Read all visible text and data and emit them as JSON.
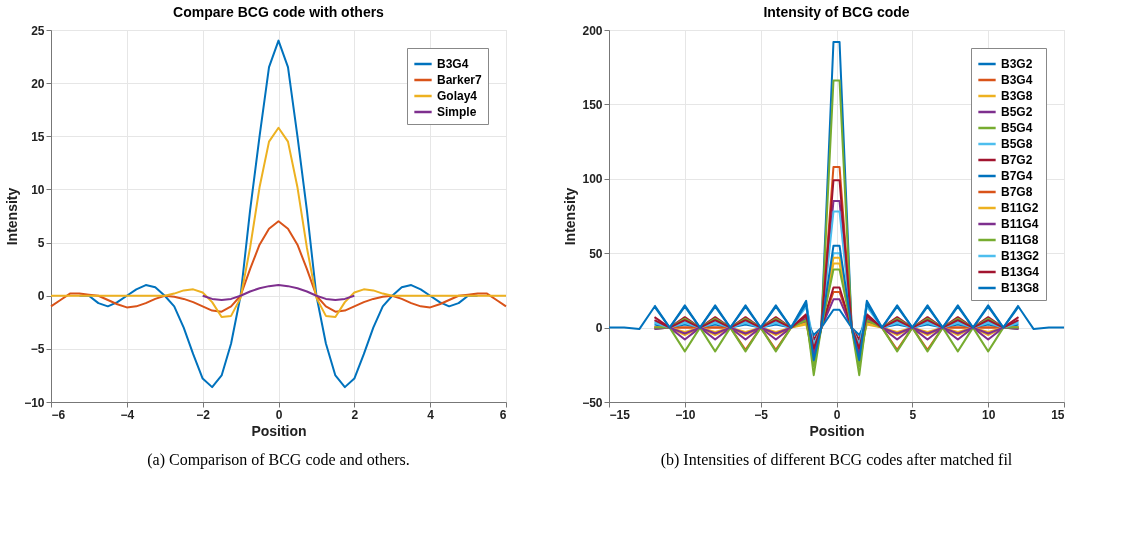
{
  "chart_data": [
    {
      "type": "line",
      "title": "Compare BCG code with others",
      "xlabel": "Position",
      "ylabel": "Intensity",
      "x": [
        -6,
        -5.75,
        -5.5,
        -5.25,
        -5,
        -4.75,
        -4.5,
        -4.25,
        -4,
        -3.75,
        -3.5,
        -3.25,
        -3,
        -2.75,
        -2.5,
        -2.25,
        -2,
        -1.75,
        -1.5,
        -1.25,
        -1,
        -0.75,
        -0.5,
        -0.25,
        0,
        0.25,
        0.5,
        0.75,
        1,
        1.25,
        1.5,
        1.75,
        2,
        2.25,
        2.5,
        2.75,
        3,
        3.25,
        3.5,
        3.75,
        4,
        4.25,
        4.5,
        4.75,
        5,
        5.25,
        5.5,
        5.75,
        6
      ],
      "series": [
        {
          "name": "B3G4",
          "color": "#0072bd",
          "values": [
            null,
            null,
            null,
            0,
            0,
            -0.7,
            -1.0,
            -0.6,
            0,
            0.6,
            1.0,
            0.8,
            0,
            -1,
            -3,
            -5.5,
            -7.8,
            -8.6,
            -7.5,
            -4.5,
            0,
            8,
            15,
            21.5,
            24,
            21.5,
            15,
            8,
            0,
            -4.5,
            -7.5,
            -8.6,
            -7.8,
            -5.5,
            -3,
            -1,
            0,
            0.8,
            1.0,
            0.6,
            0,
            -0.6,
            -1.0,
            -0.7,
            0,
            0,
            null,
            null,
            null
          ]
        },
        {
          "name": "Barker7",
          "color": "#d95319",
          "values": [
            -1.0,
            -0.4,
            0.2,
            0.2,
            0.1,
            0,
            -0.4,
            -0.8,
            -1.1,
            -1.0,
            -0.7,
            -0.3,
            0,
            -0.1,
            -0.3,
            -0.6,
            -1.0,
            -1.4,
            -1.5,
            -1.0,
            0,
            2.5,
            4.8,
            6.3,
            7,
            6.3,
            4.8,
            2.5,
            0,
            -1.0,
            -1.5,
            -1.4,
            -1.0,
            -0.6,
            -0.3,
            -0.1,
            0,
            -0.3,
            -0.7,
            -1.0,
            -1.1,
            -0.8,
            -0.4,
            0,
            0.1,
            0.2,
            0.2,
            -0.4,
            -1.0
          ]
        },
        {
          "name": "Golay4",
          "color": "#edb120",
          "values": [
            0,
            0,
            0,
            0,
            0,
            0,
            0,
            0,
            0,
            0,
            0,
            0,
            0,
            0.2,
            0.5,
            0.6,
            0.3,
            -0.6,
            -2.0,
            -1.9,
            -0.2,
            4.5,
            10.2,
            14.5,
            15.8,
            14.5,
            10.2,
            4.5,
            -0.2,
            -1.9,
            -2.0,
            -0.6,
            0.3,
            0.6,
            0.5,
            0.2,
            0,
            0,
            0,
            0,
            0,
            0,
            0,
            0,
            0,
            0,
            0,
            0,
            0
          ]
        },
        {
          "name": "Simple",
          "color": "#7e2f8e",
          "x": [
            -2,
            -1.75,
            -1.5,
            -1.25,
            -1,
            -0.75,
            -0.5,
            -0.25,
            0,
            0.25,
            0.5,
            0.75,
            1,
            1.25,
            1.5,
            1.75,
            2
          ],
          "values": [
            0,
            -0.3,
            -0.4,
            -0.3,
            0,
            0.4,
            0.7,
            0.9,
            1,
            0.9,
            0.7,
            0.4,
            0,
            -0.3,
            -0.4,
            -0.3,
            0
          ]
        }
      ],
      "xlim": [
        -6,
        6
      ],
      "xticks": [
        -6,
        -4,
        -2,
        0,
        2,
        4,
        6
      ],
      "ylim": [
        -10,
        25
      ],
      "yticks": [
        -10,
        -5,
        0,
        5,
        10,
        15,
        20,
        25
      ],
      "grid": true,
      "legend": "top right",
      "annotations": [
        "(a) Comparison of BCG code and others."
      ]
    },
    {
      "type": "line",
      "title": "Intensity of BCG code",
      "xlabel": "Position",
      "ylabel": "Intensity",
      "x": [
        -15,
        -14,
        -13,
        -12,
        -11,
        -10,
        -9,
        -8,
        -7,
        -6,
        -5,
        -4,
        -3,
        -2,
        -1.5,
        -1,
        -0.2,
        0,
        0.2,
        1,
        1.5,
        2,
        3,
        4,
        5,
        6,
        7,
        8,
        9,
        10,
        11,
        12,
        13,
        14,
        15
      ],
      "series": [
        {
          "name": "B3G2",
          "color": "#0072bd",
          "values": [
            null,
            null,
            null,
            15,
            0,
            15,
            0,
            15,
            0,
            15,
            0,
            15,
            0,
            18,
            -20,
            0,
            192,
            192,
            192,
            0,
            -20,
            18,
            0,
            15,
            0,
            15,
            0,
            15,
            0,
            15,
            0,
            15,
            null,
            null,
            null
          ]
        },
        {
          "name": "B3G4",
          "color": "#d95319",
          "values": [
            null,
            null,
            null,
            0,
            0,
            0,
            0,
            0,
            0,
            -15,
            0,
            -15,
            0,
            6,
            -24,
            0,
            24,
            24,
            24,
            0,
            -24,
            6,
            0,
            -15,
            0,
            -15,
            0,
            0,
            0,
            0,
            0,
            0,
            null,
            null,
            null
          ]
        },
        {
          "name": "B3G8",
          "color": "#edb120",
          "values": [
            null,
            null,
            null,
            0,
            0,
            -5,
            0,
            -5,
            0,
            -5,
            0,
            -5,
            0,
            2,
            -18,
            0,
            43,
            43,
            43,
            0,
            -18,
            2,
            0,
            -5,
            0,
            -5,
            0,
            -5,
            0,
            -5,
            0,
            0,
            null,
            null,
            null
          ]
        },
        {
          "name": "B5G2",
          "color": "#7e2f8e",
          "values": [
            null,
            null,
            null,
            0,
            0,
            -8,
            0,
            -8,
            0,
            -8,
            0,
            -8,
            0,
            4,
            -15,
            0,
            19,
            19,
            19,
            0,
            -15,
            4,
            0,
            -8,
            0,
            -8,
            0,
            -8,
            0,
            -8,
            0,
            0,
            null,
            null,
            null
          ]
        },
        {
          "name": "B5G4",
          "color": "#77ac30",
          "values": [
            null,
            null,
            null,
            -1,
            0,
            -16,
            0,
            -16,
            0,
            -16,
            0,
            -16,
            0,
            8,
            -32,
            0,
            166,
            166,
            166,
            0,
            -32,
            8,
            0,
            -16,
            0,
            -16,
            0,
            -16,
            0,
            -16,
            0,
            -1,
            null,
            null,
            null
          ]
        },
        {
          "name": "B5G8",
          "color": "#4dbeee",
          "values": [
            null,
            null,
            null,
            4,
            0,
            4,
            0,
            4,
            0,
            4,
            0,
            4,
            0,
            15,
            -10,
            0,
            50,
            50,
            50,
            0,
            -10,
            15,
            0,
            4,
            0,
            4,
            0,
            4,
            0,
            4,
            0,
            4,
            null,
            null,
            null
          ]
        },
        {
          "name": "B7G2",
          "color": "#a2142f",
          "values": [
            null,
            null,
            null,
            7,
            0,
            7,
            0,
            7,
            0,
            7,
            0,
            7,
            0,
            9,
            -8,
            0,
            27,
            27,
            27,
            0,
            -8,
            9,
            0,
            7,
            0,
            7,
            0,
            7,
            0,
            7,
            0,
            7,
            null,
            null,
            null
          ]
        },
        {
          "name": "B7G4",
          "color": "#0072bd",
          "values": [
            null,
            null,
            null,
            2,
            0,
            2,
            0,
            2,
            0,
            2,
            0,
            2,
            0,
            5,
            -5,
            0,
            12,
            12,
            12,
            0,
            -5,
            5,
            0,
            2,
            0,
            2,
            0,
            2,
            0,
            2,
            0,
            2,
            null,
            null,
            null
          ]
        },
        {
          "name": "B7G8",
          "color": "#d95319",
          "values": [
            null,
            null,
            null,
            0,
            0,
            0,
            0,
            0,
            0,
            -4,
            0,
            -4,
            0,
            5,
            -22,
            0,
            108,
            108,
            108,
            0,
            -22,
            5,
            0,
            -4,
            0,
            -4,
            0,
            0,
            0,
            0,
            0,
            0,
            null,
            null,
            null
          ]
        },
        {
          "name": "B11G2",
          "color": "#edb120",
          "values": [
            null,
            null,
            null,
            0,
            0,
            -3,
            0,
            -3,
            0,
            -3,
            0,
            -3,
            0,
            3,
            -12,
            0,
            47,
            47,
            47,
            0,
            -12,
            3,
            0,
            -3,
            0,
            -3,
            0,
            -3,
            0,
            -3,
            0,
            0,
            null,
            null,
            null
          ]
        },
        {
          "name": "B11G4",
          "color": "#7e2f8e",
          "values": [
            null,
            null,
            null,
            -1,
            0,
            -4,
            0,
            -4,
            0,
            -4,
            0,
            -4,
            0,
            6,
            -18,
            0,
            85,
            85,
            85,
            0,
            -18,
            6,
            0,
            -4,
            0,
            -4,
            0,
            -4,
            0,
            -4,
            0,
            -1,
            null,
            null,
            null
          ]
        },
        {
          "name": "B11G8",
          "color": "#77ac30",
          "values": [
            null,
            null,
            null,
            0,
            0,
            6,
            0,
            6,
            0,
            6,
            0,
            6,
            0,
            5,
            -26,
            0,
            39,
            39,
            39,
            0,
            -26,
            5,
            0,
            6,
            0,
            6,
            0,
            6,
            0,
            6,
            0,
            0,
            null,
            null,
            null
          ]
        },
        {
          "name": "B13G2",
          "color": "#4dbeee",
          "values": [
            null,
            null,
            null,
            3,
            0,
            3,
            0,
            3,
            0,
            3,
            0,
            3,
            0,
            14,
            -12,
            0,
            78,
            78,
            78,
            0,
            -12,
            14,
            0,
            3,
            0,
            3,
            0,
            3,
            0,
            3,
            0,
            3,
            null,
            null,
            null
          ]
        },
        {
          "name": "B13G4",
          "color": "#a2142f",
          "values": [
            null,
            null,
            null,
            5,
            0,
            5,
            0,
            5,
            0,
            5,
            0,
            5,
            0,
            8,
            -14,
            0,
            99,
            99,
            99,
            0,
            -14,
            8,
            0,
            5,
            0,
            5,
            0,
            5,
            0,
            5,
            0,
            5,
            null,
            null,
            null
          ]
        },
        {
          "name": "B13G8",
          "color": "#0072bd",
          "values": [
            0,
            0,
            -1,
            14,
            0,
            14,
            0,
            14,
            0,
            14,
            0,
            14,
            0,
            16,
            -22,
            0,
            55,
            55,
            55,
            0,
            -22,
            16,
            0,
            14,
            0,
            14,
            0,
            14,
            0,
            14,
            0,
            14,
            -1,
            0,
            0
          ]
        }
      ],
      "xlim": [
        -15,
        15
      ],
      "xticks": [
        -15,
        -10,
        -5,
        0,
        5,
        10,
        15
      ],
      "ylim": [
        -50,
        200
      ],
      "yticks": [
        -50,
        0,
        50,
        100,
        150,
        200
      ],
      "grid": true,
      "legend": "top right",
      "annotations": [
        "(b) Intensities of different BCG codes after matched fil"
      ]
    }
  ]
}
